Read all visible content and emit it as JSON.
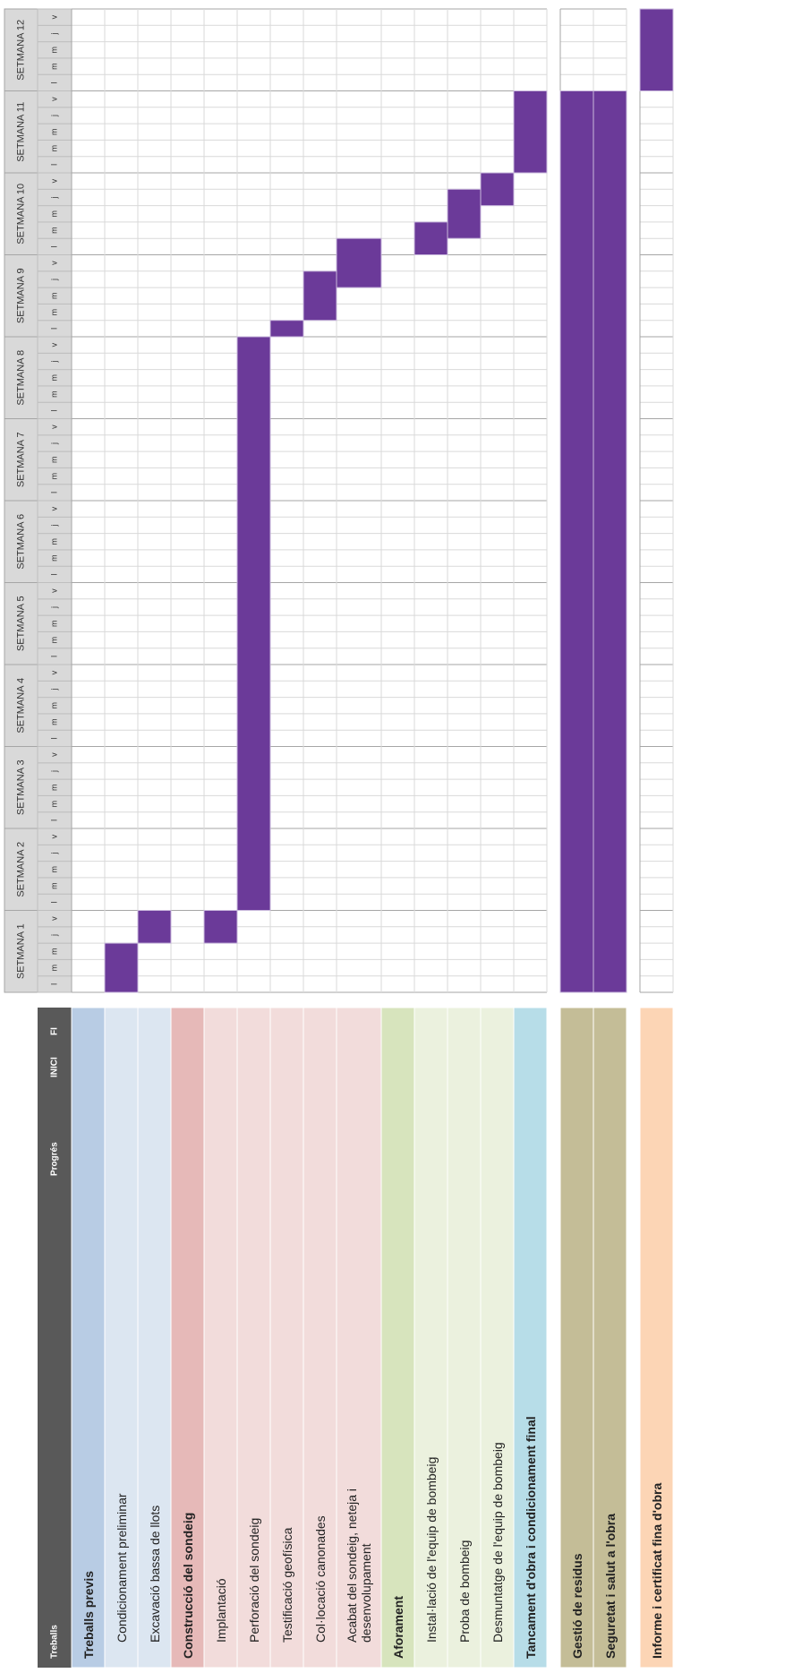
{
  "chart_data": {
    "type": "gantt",
    "headers": [
      "Treballs",
      "Progrés",
      "INICI",
      "FI"
    ],
    "weeks": [
      "SETMANA 1",
      "SETMANA 2",
      "SETMANA 3",
      "SETMANA 4",
      "SETMANA 5",
      "SETMANA 6",
      "SETMANA 7",
      "SETMANA 8",
      "SETMANA 9",
      "SETMANA 10",
      "SETMANA 11",
      "SETMANA 12"
    ],
    "days": [
      "l",
      "m",
      "m",
      "j",
      "v"
    ],
    "bar_color": "#6b3a99",
    "blocks": [
      [
        {
          "name": "Treballs previs",
          "color": "#b8cce4",
          "task_color": "#dce6f1",
          "tasks": [
            {
              "name": "Condicionament preliminar",
              "start": 0,
              "duration": 3
            },
            {
              "name": "Excavació bassa de llots",
              "start": 3,
              "duration": 2
            }
          ]
        },
        {
          "name": "Construcció del sondeig",
          "color": "#e6b9b8",
          "task_color": "#f2dcdb",
          "tasks": [
            {
              "name": "Implantació",
              "start": 3,
              "duration": 2
            },
            {
              "name": "Perforació del sondeig",
              "start": 5,
              "duration": 35
            },
            {
              "name": "Testificació geofísica",
              "start": 40,
              "duration": 1
            },
            {
              "name": "Col·locació canonades",
              "start": 41,
              "duration": 3
            },
            {
              "name": "Acabat del sondeig, neteja i desenvolupament",
              "start": 43,
              "duration": 3,
              "wrap": true
            }
          ]
        },
        {
          "name": "Aforament",
          "color": "#d7e4bd",
          "task_color": "#ebf1de",
          "tasks": [
            {
              "name": "Instal·lació de l'equip de bombeig",
              "start": 45,
              "duration": 2
            },
            {
              "name": "Proba de bombeig",
              "start": 46,
              "duration": 3
            },
            {
              "name": "Desmuntatge de l'equip de bombeig",
              "start": 48,
              "duration": 2
            }
          ]
        },
        {
          "name": "Tancament d'obra i condicionament final",
          "color": "#b7dde8",
          "start": 50,
          "duration": 5,
          "tasks": []
        }
      ],
      [
        {
          "name": "Gestió de residus",
          "color": "#c4bd97",
          "start": 0,
          "duration": 55,
          "tasks": []
        },
        {
          "name": "Seguretat i salut a l'obra",
          "color": "#c4bd97",
          "start": 0,
          "duration": 55,
          "tasks": []
        }
      ],
      [
        {
          "name": "Informe i certificat fina d'obra",
          "color": "#fcd5b5",
          "start": 55,
          "duration": 5,
          "tasks": []
        }
      ]
    ]
  }
}
